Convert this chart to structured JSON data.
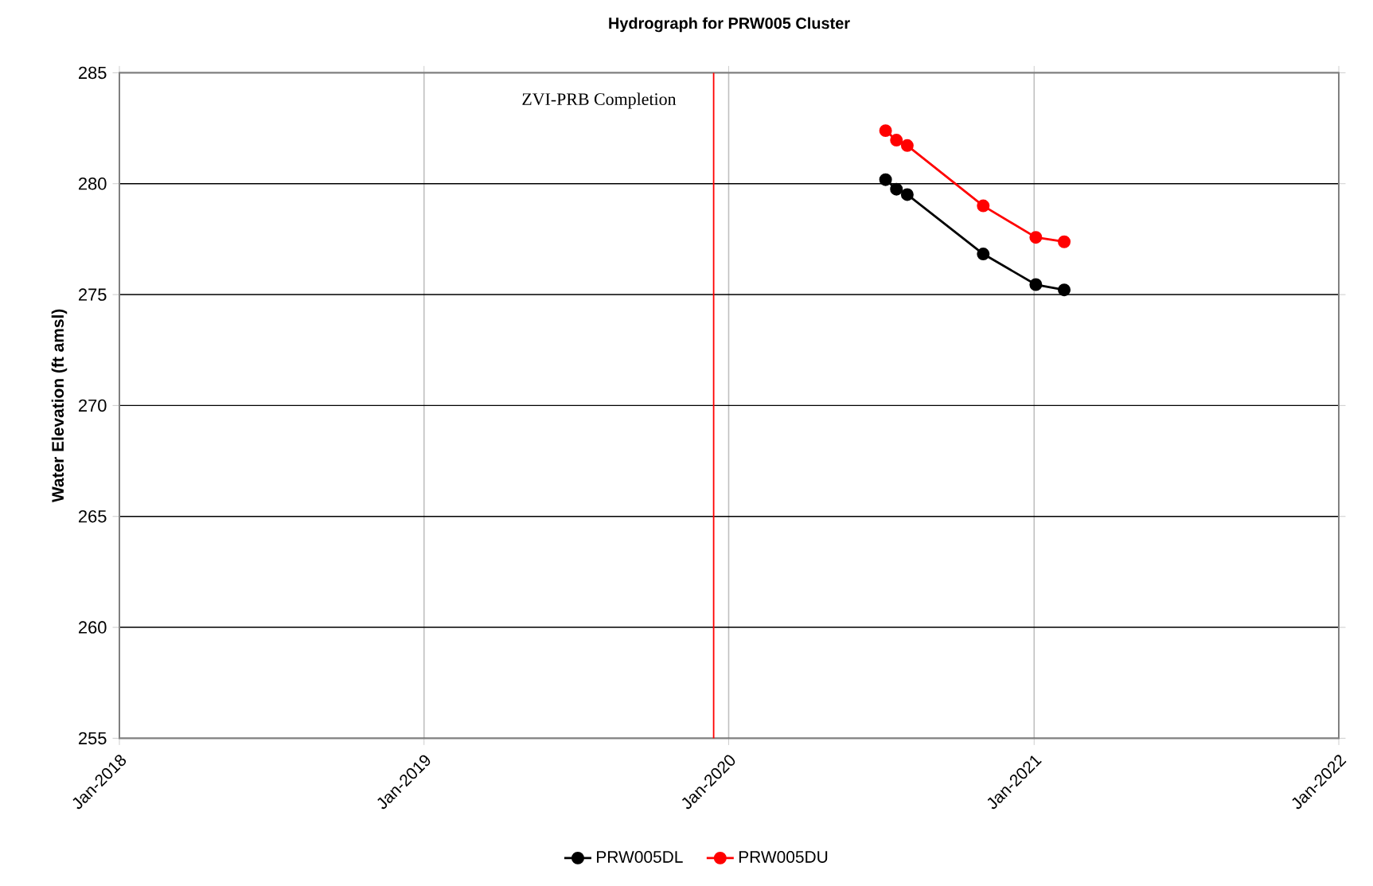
{
  "chart_data": {
    "type": "line",
    "title": "Hydrograph for PRW005 Cluster",
    "ylabel": "Water Elevation (ft amsl)",
    "x": [
      "2020-07-07",
      "2020-07-20",
      "2020-08-02",
      "2020-11-01",
      "2021-01-03",
      "2021-02-06"
    ],
    "series": [
      {
        "name": "PRW005DL",
        "color": "#000000",
        "values": [
          280.18,
          279.75,
          279.51,
          276.83,
          275.45,
          275.21
        ]
      },
      {
        "name": "PRW005DU",
        "color": "#ff0000",
        "values": [
          282.39,
          281.96,
          281.72,
          279.0,
          277.58,
          277.38
        ]
      }
    ],
    "xlim": [
      "2018-01-01",
      "2022-01-01"
    ],
    "xticks": [
      {
        "value": "2018-01-01",
        "label": "Jan-2018"
      },
      {
        "value": "2019-01-01",
        "label": "Jan-2019"
      },
      {
        "value": "2020-01-01",
        "label": "Jan-2020"
      },
      {
        "value": "2021-01-01",
        "label": "Jan-2021"
      },
      {
        "value": "2022-01-01",
        "label": "Jan-2022"
      }
    ],
    "ylim": [
      255,
      285
    ],
    "yticks": [
      255,
      260,
      265,
      270,
      275,
      280,
      285
    ],
    "ref_lines": [
      {
        "axis": "x",
        "value": "2019-12-14",
        "label": "ZVI-PRB Completion",
        "color": "#ff0000"
      }
    ],
    "grid": true,
    "legend": "bottom",
    "marker": "circle",
    "line_style": "solid"
  }
}
